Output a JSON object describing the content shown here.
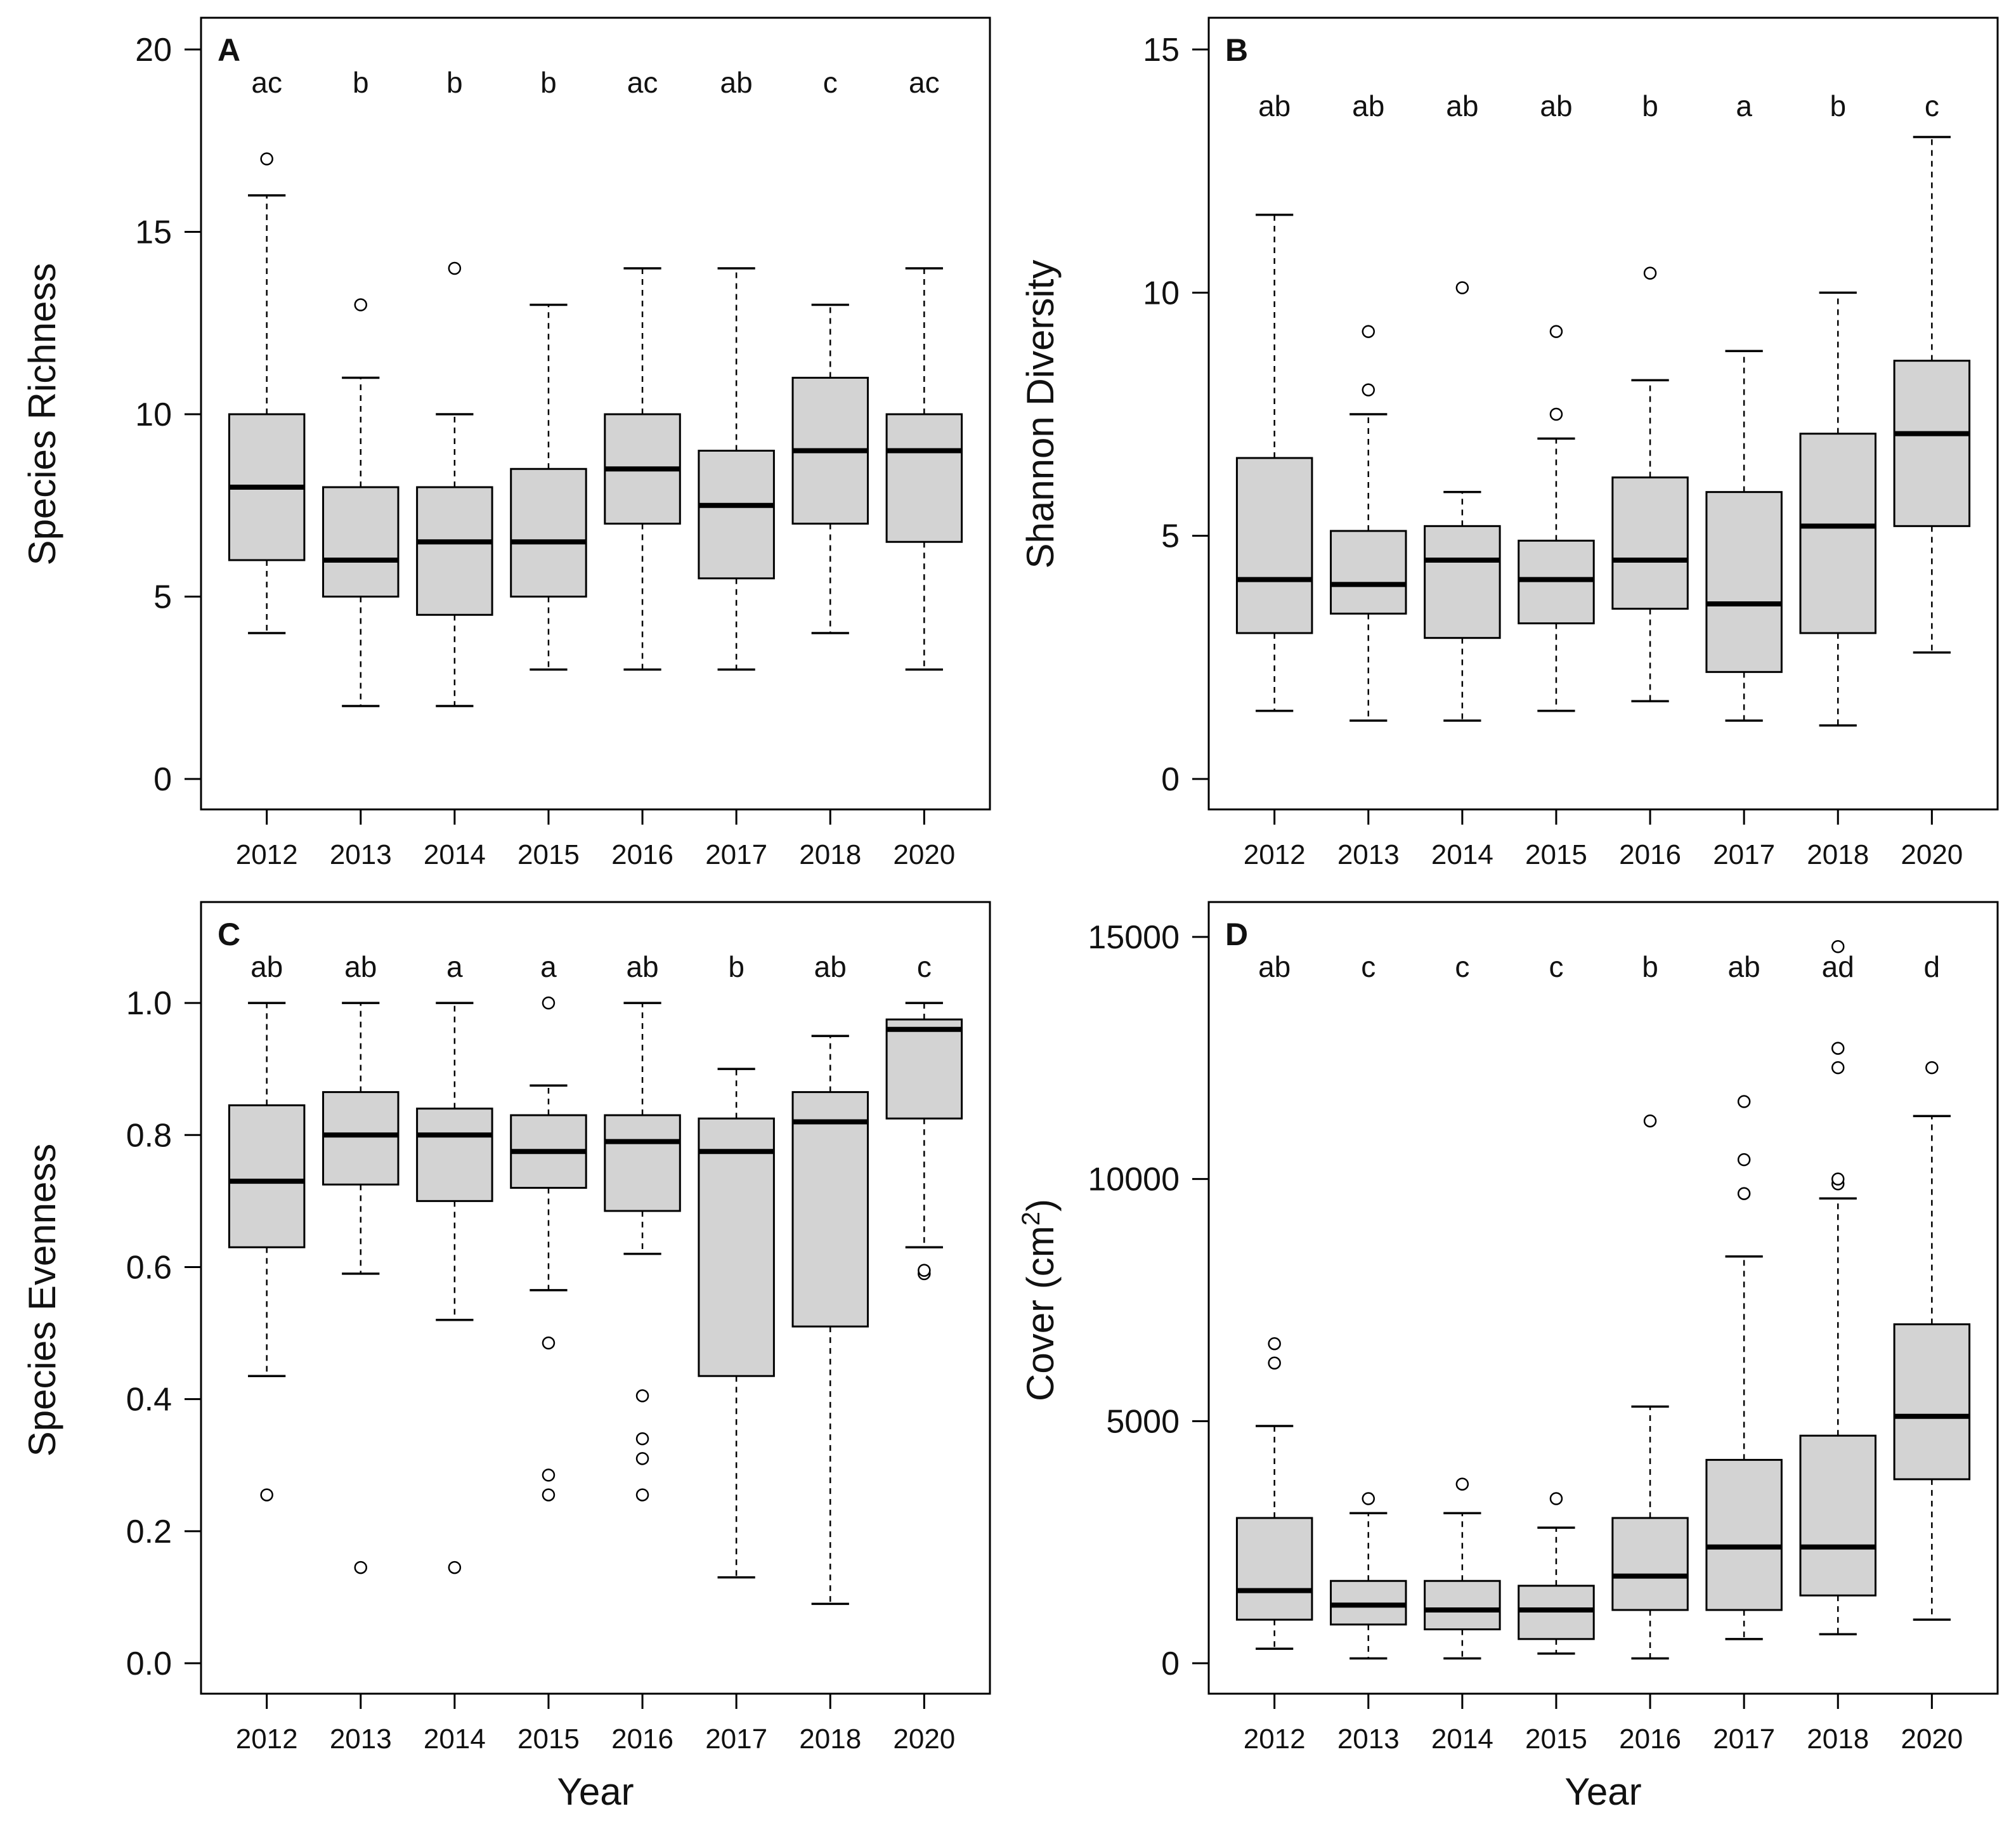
{
  "style": {
    "box_fill": "#d3d3d3",
    "stroke": "#000000",
    "background": "#ffffff"
  },
  "chart_data": [
    {
      "type": "boxplot",
      "panel_label": "A",
      "title": "",
      "xlabel": "",
      "ylabel": "Species Richness",
      "ylim": [
        0,
        20
      ],
      "yticks": [
        0,
        5,
        10,
        15,
        20
      ],
      "categories": [
        "2012",
        "2013",
        "2014",
        "2015",
        "2016",
        "2017",
        "2018",
        "2020"
      ],
      "letters": [
        "ac",
        "b",
        "b",
        "b",
        "ac",
        "ab",
        "c",
        "ac"
      ],
      "boxes": [
        {
          "whisker_low": 4,
          "q1": 6,
          "median": 8,
          "q3": 10,
          "whisker_high": 16,
          "outliers": [
            17
          ]
        },
        {
          "whisker_low": 2,
          "q1": 5,
          "median": 6,
          "q3": 8,
          "whisker_high": 11,
          "outliers": [
            13
          ]
        },
        {
          "whisker_low": 2,
          "q1": 4.5,
          "median": 6.5,
          "q3": 8,
          "whisker_high": 10,
          "outliers": [
            14
          ]
        },
        {
          "whisker_low": 3,
          "q1": 5,
          "median": 6.5,
          "q3": 8.5,
          "whisker_high": 13,
          "outliers": []
        },
        {
          "whisker_low": 3,
          "q1": 7,
          "median": 8.5,
          "q3": 10,
          "whisker_high": 14,
          "outliers": []
        },
        {
          "whisker_low": 3,
          "q1": 5.5,
          "median": 7.5,
          "q3": 9,
          "whisker_high": 14,
          "outliers": []
        },
        {
          "whisker_low": 4,
          "q1": 7,
          "median": 9,
          "q3": 11,
          "whisker_high": 13,
          "outliers": []
        },
        {
          "whisker_low": 3,
          "q1": 6.5,
          "median": 9,
          "q3": 10,
          "whisker_high": 14,
          "outliers": []
        }
      ]
    },
    {
      "type": "boxplot",
      "panel_label": "B",
      "title": "",
      "xlabel": "",
      "ylabel": "Shannon Diversity",
      "ylim": [
        0,
        15
      ],
      "yticks": [
        0,
        5,
        10,
        15
      ],
      "categories": [
        "2012",
        "2013",
        "2014",
        "2015",
        "2016",
        "2017",
        "2018",
        "2020"
      ],
      "letters": [
        "ab",
        "ab",
        "ab",
        "ab",
        "b",
        "a",
        "b",
        "c"
      ],
      "boxes": [
        {
          "whisker_low": 1.4,
          "q1": 3.0,
          "median": 4.1,
          "q3": 6.6,
          "whisker_high": 11.6,
          "outliers": []
        },
        {
          "whisker_low": 1.2,
          "q1": 3.4,
          "median": 4.0,
          "q3": 5.1,
          "whisker_high": 7.5,
          "outliers": [
            8.0,
            9.2
          ]
        },
        {
          "whisker_low": 1.2,
          "q1": 2.9,
          "median": 4.5,
          "q3": 5.2,
          "whisker_high": 5.9,
          "outliers": [
            10.1
          ]
        },
        {
          "whisker_low": 1.4,
          "q1": 3.2,
          "median": 4.1,
          "q3": 4.9,
          "whisker_high": 7.0,
          "outliers": [
            7.5,
            9.2
          ]
        },
        {
          "whisker_low": 1.6,
          "q1": 3.5,
          "median": 4.5,
          "q3": 6.2,
          "whisker_high": 8.2,
          "outliers": [
            10.4
          ]
        },
        {
          "whisker_low": 1.2,
          "q1": 2.2,
          "median": 3.6,
          "q3": 5.9,
          "whisker_high": 8.8,
          "outliers": []
        },
        {
          "whisker_low": 1.1,
          "q1": 3.0,
          "median": 5.2,
          "q3": 7.1,
          "whisker_high": 10.0,
          "outliers": []
        },
        {
          "whisker_low": 2.6,
          "q1": 5.2,
          "median": 7.1,
          "q3": 8.6,
          "whisker_high": 13.2,
          "outliers": []
        }
      ]
    },
    {
      "type": "boxplot",
      "panel_label": "C",
      "title": "",
      "xlabel": "Year",
      "ylabel": "Species Evenness",
      "ylim": [
        0,
        1.1
      ],
      "yticks": [
        0,
        0.2,
        0.4,
        0.6,
        0.8,
        1.0
      ],
      "ytick_labels": [
        "0.0",
        "0.2",
        "0.4",
        "0.6",
        "0.8",
        "1.0"
      ],
      "categories": [
        "2012",
        "2013",
        "2014",
        "2015",
        "2016",
        "2017",
        "2018",
        "2020"
      ],
      "letters": [
        "ab",
        "ab",
        "a",
        "a",
        "ab",
        "b",
        "ab",
        "c"
      ],
      "boxes": [
        {
          "whisker_low": 0.435,
          "q1": 0.63,
          "median": 0.73,
          "q3": 0.845,
          "whisker_high": 1.0,
          "outliers": [
            0.255
          ]
        },
        {
          "whisker_low": 0.59,
          "q1": 0.725,
          "median": 0.8,
          "q3": 0.865,
          "whisker_high": 1.0,
          "outliers": [
            0.145
          ]
        },
        {
          "whisker_low": 0.52,
          "q1": 0.7,
          "median": 0.8,
          "q3": 0.84,
          "whisker_high": 1.0,
          "outliers": [
            0.145
          ]
        },
        {
          "whisker_low": 0.565,
          "q1": 0.72,
          "median": 0.775,
          "q3": 0.83,
          "whisker_high": 0.875,
          "outliers": [
            0.255,
            0.285,
            0.485,
            1.0
          ]
        },
        {
          "whisker_low": 0.62,
          "q1": 0.685,
          "median": 0.79,
          "q3": 0.83,
          "whisker_high": 1.0,
          "outliers": [
            0.255,
            0.31,
            0.34,
            0.405
          ]
        },
        {
          "whisker_low": 0.13,
          "q1": 0.435,
          "median": 0.775,
          "q3": 0.825,
          "whisker_high": 0.9,
          "outliers": []
        },
        {
          "whisker_low": 0.09,
          "q1": 0.51,
          "median": 0.82,
          "q3": 0.865,
          "whisker_high": 0.95,
          "outliers": []
        },
        {
          "whisker_low": 0.63,
          "q1": 0.825,
          "median": 0.96,
          "q3": 0.975,
          "whisker_high": 1.0,
          "outliers": [
            0.59,
            0.595
          ]
        }
      ]
    },
    {
      "type": "boxplot",
      "panel_label": "D",
      "title": "",
      "xlabel": "Year",
      "ylabel": "Cover (cm",
      "ylabel_sup": "2",
      "ylabel_tail": ")",
      "ylim": [
        0,
        15000
      ],
      "yticks": [
        0,
        5000,
        10000,
        15000
      ],
      "categories": [
        "2012",
        "2013",
        "2014",
        "2015",
        "2016",
        "2017",
        "2018",
        "2020"
      ],
      "letters": [
        "ab",
        "c",
        "c",
        "c",
        "b",
        "ab",
        "ad",
        "d"
      ],
      "boxes": [
        {
          "whisker_low": 300,
          "q1": 900,
          "median": 1500,
          "q3": 3000,
          "whisker_high": 4900,
          "outliers": [
            6200,
            6600
          ]
        },
        {
          "whisker_low": 100,
          "q1": 800,
          "median": 1200,
          "q3": 1700,
          "whisker_high": 3100,
          "outliers": [
            3400
          ]
        },
        {
          "whisker_low": 100,
          "q1": 700,
          "median": 1100,
          "q3": 1700,
          "whisker_high": 3100,
          "outliers": [
            3700
          ]
        },
        {
          "whisker_low": 200,
          "q1": 500,
          "median": 1100,
          "q3": 1600,
          "whisker_high": 2800,
          "outliers": [
            3400
          ]
        },
        {
          "whisker_low": 100,
          "q1": 1100,
          "median": 1800,
          "q3": 3000,
          "whisker_high": 5300,
          "outliers": [
            11200
          ]
        },
        {
          "whisker_low": 500,
          "q1": 1100,
          "median": 2400,
          "q3": 4200,
          "whisker_high": 8400,
          "outliers": [
            9700,
            10400,
            11600
          ]
        },
        {
          "whisker_low": 600,
          "q1": 1400,
          "median": 2400,
          "q3": 4700,
          "whisker_high": 9600,
          "outliers": [
            9900,
            10000,
            12300,
            12700,
            14800
          ]
        },
        {
          "whisker_low": 900,
          "q1": 3800,
          "median": 5100,
          "q3": 7000,
          "whisker_high": 11300,
          "outliers": [
            12300
          ]
        }
      ]
    }
  ]
}
